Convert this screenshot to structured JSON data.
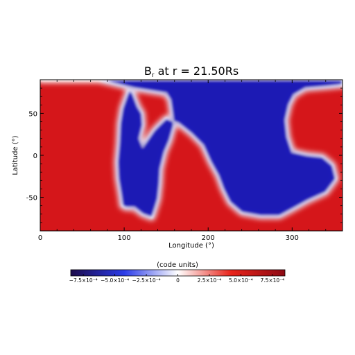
{
  "chart_data": {
    "type": "heatmap",
    "title_main": "B",
    "title_sub": "r",
    "title_rest": " at r = 21.50Rs",
    "xlabel": "Longitude (°)",
    "ylabel": "Latitude (°)",
    "xlim": [
      0,
      360
    ],
    "ylim": [
      -90,
      90
    ],
    "xticks": [
      {
        "value": 0,
        "label": "0"
      },
      {
        "value": 100,
        "label": "100"
      },
      {
        "value": 200,
        "label": "200"
      },
      {
        "value": 300,
        "label": "300"
      }
    ],
    "yticks": [
      {
        "value": 50,
        "label": "50"
      },
      {
        "value": 0,
        "label": "0"
      },
      {
        "value": -50,
        "label": "-50"
      }
    ],
    "colorbar": {
      "label": "(code units)",
      "range": [
        -0.00085,
        0.00085
      ],
      "colors": [
        "#1c0a4a",
        "#2a3be8",
        "#ffffff",
        "#e8231a",
        "#8c0a14"
      ],
      "ticks": [
        {
          "value": -0.00075,
          "label": "−7.5×10⁻⁴"
        },
        {
          "value": -0.0005,
          "label": "−5.0×10⁻⁴"
        },
        {
          "value": -0.00025,
          "label": "−2.5×10⁻⁴"
        },
        {
          "value": 0,
          "label": "0"
        },
        {
          "value": 0.00025,
          "label": "2.5×10⁻⁴"
        },
        {
          "value": 0.0005,
          "label": "5.0×10⁻⁴"
        },
        {
          "value": 0.00075,
          "label": "7.5×10⁻⁴"
        }
      ]
    },
    "neutral_line": [
      [
        70,
        90
      ],
      [
        112,
        80
      ],
      [
        150,
        74
      ],
      [
        155,
        66
      ],
      [
        157,
        52
      ],
      [
        159,
        36
      ],
      [
        154,
        18
      ],
      [
        148,
        4
      ],
      [
        143,
        -16
      ],
      [
        142,
        -34
      ],
      [
        140,
        -52
      ],
      [
        137,
        -62
      ],
      [
        133,
        -74
      ],
      [
        122,
        -70
      ],
      [
        112,
        -62
      ],
      [
        102,
        -62
      ],
      [
        98,
        -60
      ],
      [
        96,
        -46
      ],
      [
        93,
        -28
      ],
      [
        92,
        -8
      ],
      [
        94,
        14
      ],
      [
        95,
        38
      ],
      [
        98,
        56
      ],
      [
        103,
        70
      ],
      [
        106,
        78
      ],
      [
        110,
        74
      ],
      [
        116,
        58
      ],
      [
        121,
        50
      ],
      [
        122,
        36
      ],
      [
        118,
        20
      ],
      [
        122,
        10
      ],
      [
        136,
        30
      ],
      [
        150,
        44
      ],
      [
        165,
        38
      ],
      [
        180,
        26
      ],
      [
        194,
        12
      ],
      [
        203,
        -8
      ],
      [
        212,
        -24
      ],
      [
        218,
        -40
      ],
      [
        226,
        -56
      ],
      [
        240,
        -68
      ],
      [
        262,
        -72
      ],
      [
        285,
        -72
      ],
      [
        300,
        -64
      ],
      [
        318,
        -54
      ],
      [
        340,
        -44
      ],
      [
        352,
        -28
      ],
      [
        348,
        -12
      ],
      [
        336,
        -2
      ],
      [
        318,
        0
      ],
      [
        300,
        4
      ],
      [
        294,
        22
      ],
      [
        292,
        42
      ],
      [
        296,
        60
      ],
      [
        302,
        72
      ],
      [
        316,
        80
      ],
      [
        340,
        82
      ],
      [
        360,
        84
      ],
      [
        360,
        90
      ]
    ]
  }
}
